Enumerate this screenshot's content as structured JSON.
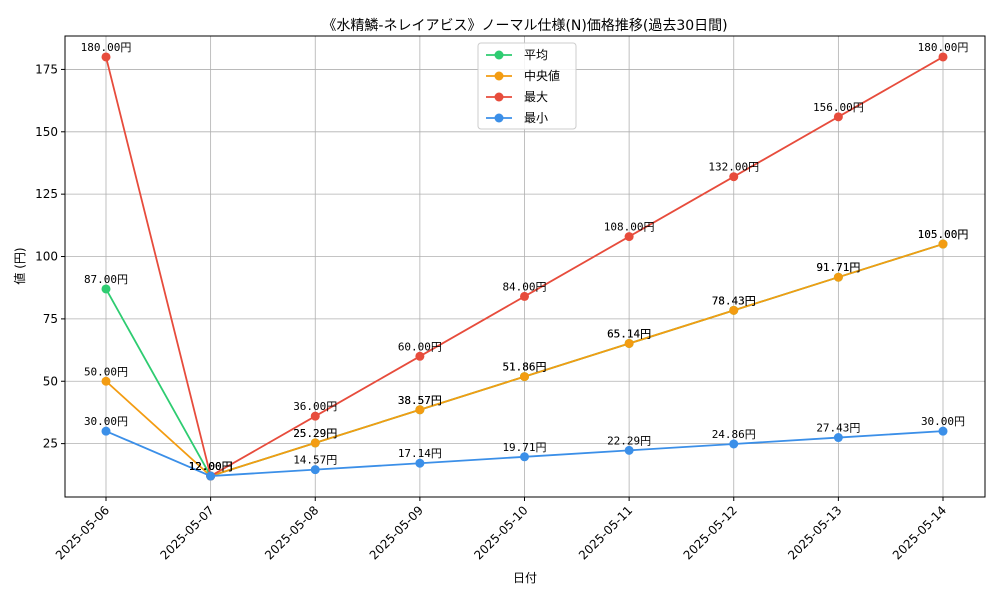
{
  "chart_data": {
    "type": "line",
    "title": "《水精鱗-ネレイアビス》ノーマル仕様(N)価格推移(過去30日間)",
    "xlabel": "日付",
    "ylabel": "値 (円)",
    "x": [
      "2025-05-06",
      "2025-05-07",
      "2025-05-08",
      "2025-05-09",
      "2025-05-10",
      "2025-05-11",
      "2025-05-12",
      "2025-05-13",
      "2025-05-14"
    ],
    "ylim": [
      3.6,
      188.4
    ],
    "yticks": [
      25,
      50,
      75,
      100,
      125,
      150,
      175
    ],
    "grid": true,
    "legend_position": "top-center",
    "series": [
      {
        "name": "平均",
        "color": "#2ecc71",
        "values": [
          87.0,
          12.0,
          25.29,
          38.57,
          51.86,
          65.14,
          78.43,
          91.71,
          105.0
        ],
        "labels": [
          "87.00円",
          "12.00円",
          "25.29円",
          "38.57円",
          "51.86円",
          "65.14円",
          "78.43円",
          "91.71円",
          "105.00円"
        ]
      },
      {
        "name": "中央値",
        "color": "#f39c12",
        "values": [
          50.0,
          12.0,
          25.29,
          38.57,
          51.86,
          65.14,
          78.43,
          91.71,
          105.0
        ],
        "labels": [
          "50.00円",
          "12.00円",
          "25.29円",
          "38.57円",
          "51.86円",
          "65.14円",
          "78.43円",
          "91.71円",
          "105.00円"
        ]
      },
      {
        "name": "最大",
        "color": "#e74c3c",
        "values": [
          180.0,
          12.0,
          36.0,
          60.0,
          84.0,
          108.0,
          132.0,
          156.0,
          180.0
        ],
        "labels": [
          "180.00円",
          "12.00円",
          "36.00円",
          "60.00円",
          "84.00円",
          "108.00円",
          "132.00円",
          "156.00円",
          "180.00円"
        ]
      },
      {
        "name": "最小",
        "color": "#3b8fe8",
        "values": [
          30.0,
          12.0,
          14.57,
          17.14,
          19.71,
          22.29,
          24.86,
          27.43,
          30.0
        ],
        "labels": [
          "30.00円",
          "12.00円",
          "14.57円",
          "17.14円",
          "19.71円",
          "22.29円",
          "24.86円",
          "27.43円",
          "30.00円"
        ]
      }
    ]
  }
}
